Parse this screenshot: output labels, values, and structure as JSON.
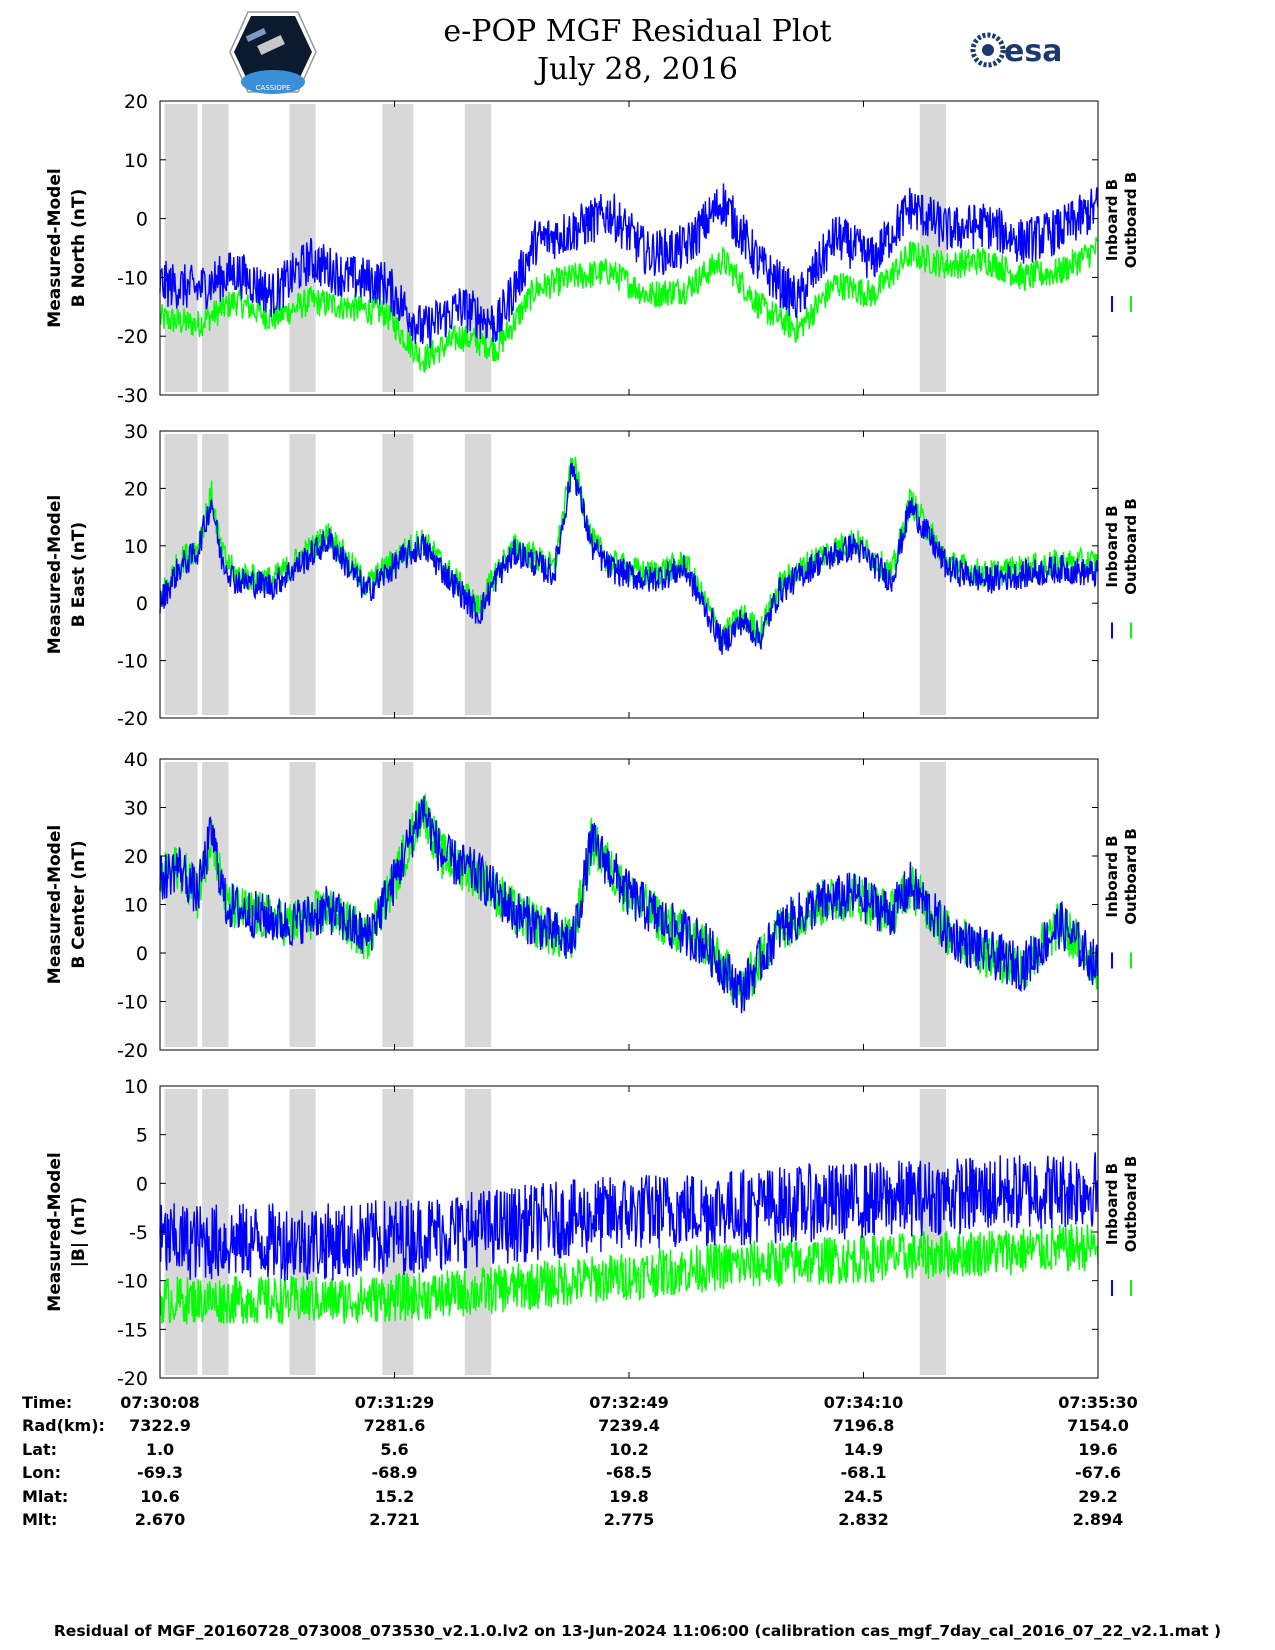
{
  "header": {
    "title_line1": "e-POP MGF Residual Plot",
    "title_line2": "July 28, 2016",
    "left_logo": "cassiope-mission-logo",
    "left_logo_text": "CASSIOPE",
    "right_logo": "esa-logo",
    "right_logo_text": "esa"
  },
  "colors": {
    "inboard": "#0000ff",
    "outboard": "#00ff00",
    "shade": "#d8d8d8"
  },
  "chart_data": [
    {
      "type": "line",
      "ylabel": [
        "Measured-Model",
        "B North (nT)"
      ],
      "ylim": [
        -30,
        20
      ],
      "yticks": [
        20,
        10,
        0,
        -10,
        -20,
        -30
      ],
      "legend": [
        "Inboard B",
        "Outboard B"
      ],
      "series": [
        {
          "name": "Inboard B",
          "x": [
            0,
            0.04,
            0.08,
            0.12,
            0.16,
            0.2,
            0.24,
            0.28,
            0.32,
            0.36,
            0.4,
            0.44,
            0.48,
            0.52,
            0.56,
            0.6,
            0.64,
            0.68,
            0.72,
            0.76,
            0.8,
            0.84,
            0.88,
            0.92,
            0.96,
            1.0
          ],
          "values": [
            -11,
            -12,
            -9,
            -13,
            -7,
            -10,
            -11,
            -19,
            -15,
            -18,
            -4,
            -2,
            1,
            -6,
            -5,
            3,
            -8,
            -14,
            -3,
            -7,
            2,
            -2,
            -1,
            -4,
            -2,
            2
          ],
          "amplitude": 4
        },
        {
          "name": "Outboard B",
          "x": [
            0,
            0.04,
            0.08,
            0.12,
            0.16,
            0.2,
            0.24,
            0.28,
            0.32,
            0.36,
            0.4,
            0.44,
            0.48,
            0.52,
            0.56,
            0.6,
            0.64,
            0.68,
            0.72,
            0.76,
            0.8,
            0.84,
            0.88,
            0.92,
            0.96,
            1.0
          ],
          "values": [
            -17,
            -18,
            -14,
            -17,
            -14,
            -15,
            -16,
            -24,
            -20,
            -22,
            -12,
            -10,
            -9,
            -13,
            -12,
            -7,
            -15,
            -19,
            -11,
            -13,
            -6,
            -8,
            -7,
            -10,
            -9,
            -5
          ],
          "amplitude": 2.5
        }
      ]
    },
    {
      "type": "line",
      "ylabel": [
        "Measured-Model",
        "B East (nT)"
      ],
      "ylim": [
        -20,
        30
      ],
      "yticks": [
        30,
        20,
        10,
        0,
        -10,
        -20
      ],
      "legend": [
        "Inboard B",
        "Outboard B"
      ],
      "series": [
        {
          "name": "Inboard B",
          "x": [
            0,
            0.02,
            0.04,
            0.055,
            0.065,
            0.08,
            0.12,
            0.18,
            0.22,
            0.26,
            0.28,
            0.3,
            0.34,
            0.36,
            0.38,
            0.42,
            0.44,
            0.46,
            0.48,
            0.52,
            0.56,
            0.6,
            0.62,
            0.64,
            0.66,
            0.7,
            0.74,
            0.78,
            0.8,
            0.84,
            0.88,
            0.92,
            0.96,
            1.0
          ],
          "values": [
            0,
            6,
            9,
            18,
            8,
            4,
            3,
            11,
            2,
            8,
            10,
            6,
            -2,
            5,
            9,
            5,
            24,
            10,
            6,
            4,
            6,
            -7,
            -3,
            -6,
            2,
            7,
            10,
            4,
            17,
            6,
            4,
            5,
            6,
            5
          ],
          "amplitude": 2.5
        },
        {
          "name": "Outboard B",
          "x": [
            0,
            0.02,
            0.04,
            0.055,
            0.065,
            0.08,
            0.12,
            0.18,
            0.22,
            0.26,
            0.28,
            0.3,
            0.34,
            0.36,
            0.38,
            0.42,
            0.44,
            0.46,
            0.48,
            0.52,
            0.56,
            0.6,
            0.62,
            0.64,
            0.66,
            0.7,
            0.74,
            0.78,
            0.8,
            0.84,
            0.88,
            0.92,
            0.96,
            1.0
          ],
          "values": [
            1,
            7,
            10,
            19,
            9,
            5,
            4,
            12,
            3,
            9,
            11,
            7,
            -1,
            6,
            10,
            6,
            25,
            11,
            7,
            5,
            7,
            -6,
            -2,
            -5,
            3,
            8,
            11,
            5,
            18,
            7,
            5,
            6,
            7,
            7
          ],
          "amplitude": 2.5
        }
      ]
    },
    {
      "type": "line",
      "ylabel": [
        "Measured-Model",
        "B Center (nT)"
      ],
      "ylim": [
        -20,
        40
      ],
      "yticks": [
        40,
        30,
        20,
        10,
        0,
        -10,
        -20
      ],
      "legend": [
        "Inboard B",
        "Outboard B"
      ],
      "series": [
        {
          "name": "Inboard B",
          "x": [
            0,
            0.02,
            0.04,
            0.055,
            0.07,
            0.1,
            0.14,
            0.18,
            0.22,
            0.25,
            0.28,
            0.3,
            0.34,
            0.38,
            0.42,
            0.44,
            0.46,
            0.5,
            0.54,
            0.58,
            0.62,
            0.66,
            0.7,
            0.74,
            0.78,
            0.8,
            0.84,
            0.88,
            0.92,
            0.96,
            1.0
          ],
          "values": [
            15,
            18,
            12,
            25,
            10,
            8,
            6,
            9,
            3,
            15,
            30,
            20,
            16,
            8,
            4,
            2,
            23,
            12,
            6,
            2,
            -8,
            5,
            10,
            12,
            8,
            14,
            4,
            0,
            -3,
            6,
            -3
          ],
          "amplitude": 5
        },
        {
          "name": "Outboard B",
          "x": [
            0,
            0.02,
            0.04,
            0.055,
            0.07,
            0.1,
            0.14,
            0.18,
            0.22,
            0.25,
            0.28,
            0.3,
            0.34,
            0.38,
            0.42,
            0.44,
            0.46,
            0.5,
            0.54,
            0.58,
            0.62,
            0.66,
            0.7,
            0.74,
            0.78,
            0.8,
            0.84,
            0.88,
            0.92,
            0.96,
            1.0
          ],
          "values": [
            15,
            18,
            12,
            25,
            10,
            8,
            6,
            9,
            3,
            15,
            30,
            20,
            16,
            8,
            4,
            2,
            23,
            12,
            6,
            2,
            -8,
            5,
            10,
            12,
            8,
            14,
            4,
            0,
            -3,
            6,
            -3
          ],
          "amplitude": 5
        }
      ]
    },
    {
      "type": "line",
      "ylabel": [
        "Measured-Model",
        "|B| (nT)"
      ],
      "ylim": [
        -20,
        10
      ],
      "yticks": [
        10,
        5,
        0,
        -5,
        -10,
        -15,
        -20
      ],
      "legend": [
        "Inboard B",
        "Outboard B"
      ],
      "series": [
        {
          "name": "Inboard B",
          "x": [
            0,
            0.1,
            0.2,
            0.3,
            0.4,
            0.5,
            0.6,
            0.7,
            0.8,
            0.9,
            1.0
          ],
          "values": [
            -6,
            -6,
            -6,
            -5,
            -4,
            -3,
            -2.5,
            -2,
            -1.5,
            -1,
            -0.5
          ],
          "amplitude": 4
        },
        {
          "name": "Outboard B",
          "x": [
            0,
            0.1,
            0.2,
            0.3,
            0.4,
            0.5,
            0.6,
            0.7,
            0.8,
            0.9,
            1.0
          ],
          "values": [
            -12,
            -12,
            -12,
            -11.5,
            -10.5,
            -9.5,
            -8.5,
            -8,
            -7.5,
            -7,
            -6.5
          ],
          "amplitude": 2.5
        }
      ]
    }
  ],
  "shaded_intervals": [
    [
      0.005,
      0.04
    ],
    [
      0.045,
      0.073
    ],
    [
      0.138,
      0.166
    ],
    [
      0.237,
      0.27
    ],
    [
      0.325,
      0.353
    ],
    [
      0.81,
      0.838
    ]
  ],
  "x_ticks": [
    0,
    0.25,
    0.5,
    0.75,
    1.0
  ],
  "annotations": {
    "labels": [
      "Time:",
      "Rad(km):",
      "Lat:",
      "Lon:",
      "Mlat:",
      "Mlt:"
    ],
    "columns": [
      [
        "07:30:08",
        "7322.9",
        "1.0",
        "-69.3",
        "10.6",
        "2.670"
      ],
      [
        "07:31:29",
        "7281.6",
        "5.6",
        "-68.9",
        "15.2",
        "2.721"
      ],
      [
        "07:32:49",
        "7239.4",
        "10.2",
        "-68.5",
        "19.8",
        "2.775"
      ],
      [
        "07:34:10",
        "7196.8",
        "14.9",
        "-68.1",
        "24.5",
        "2.832"
      ],
      [
        "07:35:30",
        "7154.0",
        "19.6",
        "-67.6",
        "29.2",
        "2.894"
      ]
    ]
  },
  "footer": "Residual of MGF_20160728_073008_073530_v2.1.0.lv2 on 13-Jun-2024 11:06:00 (calibration cas_mgf_7day_cal_2016_07_22_v2.1.mat )"
}
